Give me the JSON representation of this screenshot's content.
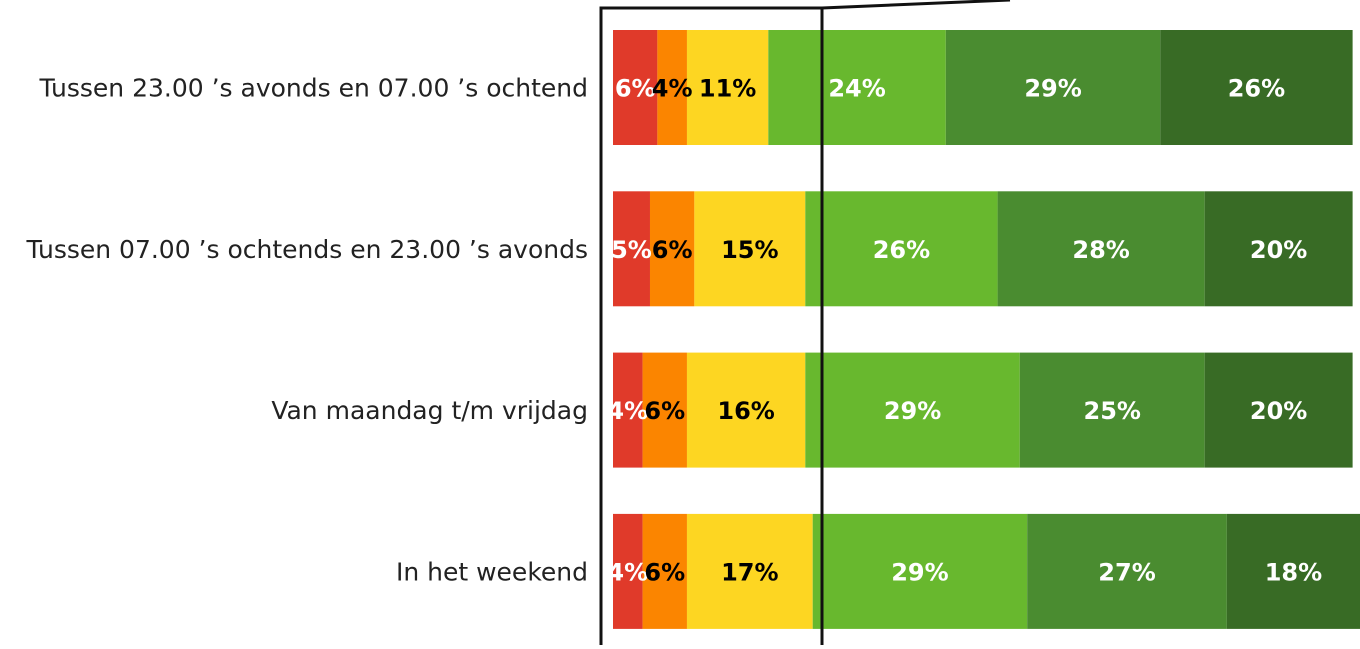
{
  "chart_data": {
    "type": "stacked-bar-horizontal",
    "categories": [
      "Tussen 23.00 ’s avonds en 07.00 ’s ochtend",
      "Tussen 07.00 ’s ochtends en 23.00 ’s avonds",
      "Van maandag t/m vrijdag",
      "In het weekend"
    ],
    "series": [
      {
        "color": "#e03a2a",
        "label_color": "#ffffff",
        "values": [
          6,
          5,
          4,
          4
        ],
        "value_labels": [
          "6%",
          "5%",
          "4%",
          "4%"
        ]
      },
      {
        "color": "#fb8500",
        "label_color": "#000000",
        "values": [
          4,
          6,
          6,
          6
        ],
        "value_labels": [
          "4%",
          "6%",
          "6%",
          "6%"
        ]
      },
      {
        "color": "#fdd622",
        "label_color": "#000000",
        "values": [
          11,
          15,
          16,
          17
        ],
        "value_labels": [
          "11%",
          "15%",
          "16%",
          "17%"
        ]
      },
      {
        "color": "#68b82e",
        "label_color": "#ffffff",
        "values": [
          24,
          26,
          29,
          29
        ],
        "value_labels": [
          "24%",
          "26%",
          "29%",
          "29%"
        ]
      },
      {
        "color": "#4a8c30",
        "label_color": "#ffffff",
        "values": [
          29,
          28,
          25,
          27
        ],
        "value_labels": [
          "29%",
          "28%",
          "25%",
          "27%"
        ]
      },
      {
        "color": "#386b25",
        "label_color": "#ffffff",
        "values": [
          26,
          20,
          20,
          18
        ],
        "value_labels": [
          "26%",
          "20%",
          "20%",
          "18%"
        ]
      }
    ]
  }
}
